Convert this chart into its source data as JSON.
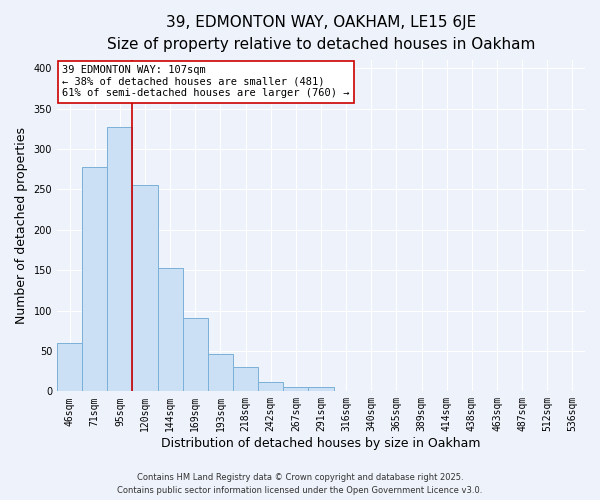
{
  "title": "39, EDMONTON WAY, OAKHAM, LE15 6JE",
  "subtitle": "Size of property relative to detached houses in Oakham",
  "xlabel": "Distribution of detached houses by size in Oakham",
  "ylabel": "Number of detached properties",
  "bar_labels": [
    "46sqm",
    "71sqm",
    "95sqm",
    "120sqm",
    "144sqm",
    "169sqm",
    "193sqm",
    "218sqm",
    "242sqm",
    "267sqm",
    "291sqm",
    "316sqm",
    "340sqm",
    "365sqm",
    "389sqm",
    "414sqm",
    "438sqm",
    "463sqm",
    "487sqm",
    "512sqm",
    "536sqm"
  ],
  "bar_values": [
    60,
    278,
    327,
    255,
    153,
    91,
    46,
    30,
    12,
    5,
    5,
    1,
    0,
    0,
    0,
    0,
    0,
    0,
    0,
    0,
    1
  ],
  "bar_color": "#cce0f5",
  "bar_edge_color": "#7ab0d8",
  "property_line_x": 2.5,
  "property_line_color": "#cc0000",
  "annotation_text": "39 EDMONTON WAY: 107sqm\n← 38% of detached houses are smaller (481)\n61% of semi-detached houses are larger (760) →",
  "annotation_box_color": "#ffffff",
  "annotation_box_edge": "#cc0000",
  "ylim": [
    0,
    410
  ],
  "yticks": [
    0,
    50,
    100,
    150,
    200,
    250,
    300,
    350,
    400
  ],
  "footer_line1": "Contains HM Land Registry data © Crown copyright and database right 2025.",
  "footer_line2": "Contains public sector information licensed under the Open Government Licence v3.0.",
  "background_color": "#eef2fa",
  "grid_color": "#ffffff",
  "title_fontsize": 11,
  "subtitle_fontsize": 9.5,
  "tick_fontsize": 7,
  "axis_label_fontsize": 9,
  "footer_fontsize": 6,
  "annotation_fontsize": 7.5
}
